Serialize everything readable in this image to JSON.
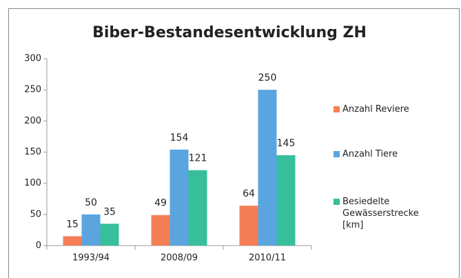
{
  "chart_data": {
    "type": "bar",
    "title": "Biber-Bestandesentwicklung ZH",
    "categories": [
      "1993/94",
      "2008/09",
      "2010/11"
    ],
    "series": [
      {
        "name": "Anzahl Reviere",
        "color": "#f47f56",
        "values": [
          15,
          49,
          64
        ]
      },
      {
        "name": "Anzahl Tiere",
        "color": "#5aa5e0",
        "values": [
          50,
          154,
          250
        ]
      },
      {
        "name": "Besiedelte Gewässerstrecke [km]",
        "color": "#36bf9a",
        "values": [
          35,
          121,
          145
        ]
      }
    ],
    "ylim": [
      0,
      300
    ],
    "yticks": [
      0,
      50,
      100,
      150,
      200,
      250,
      300
    ],
    "grid": false,
    "legend": "right"
  }
}
